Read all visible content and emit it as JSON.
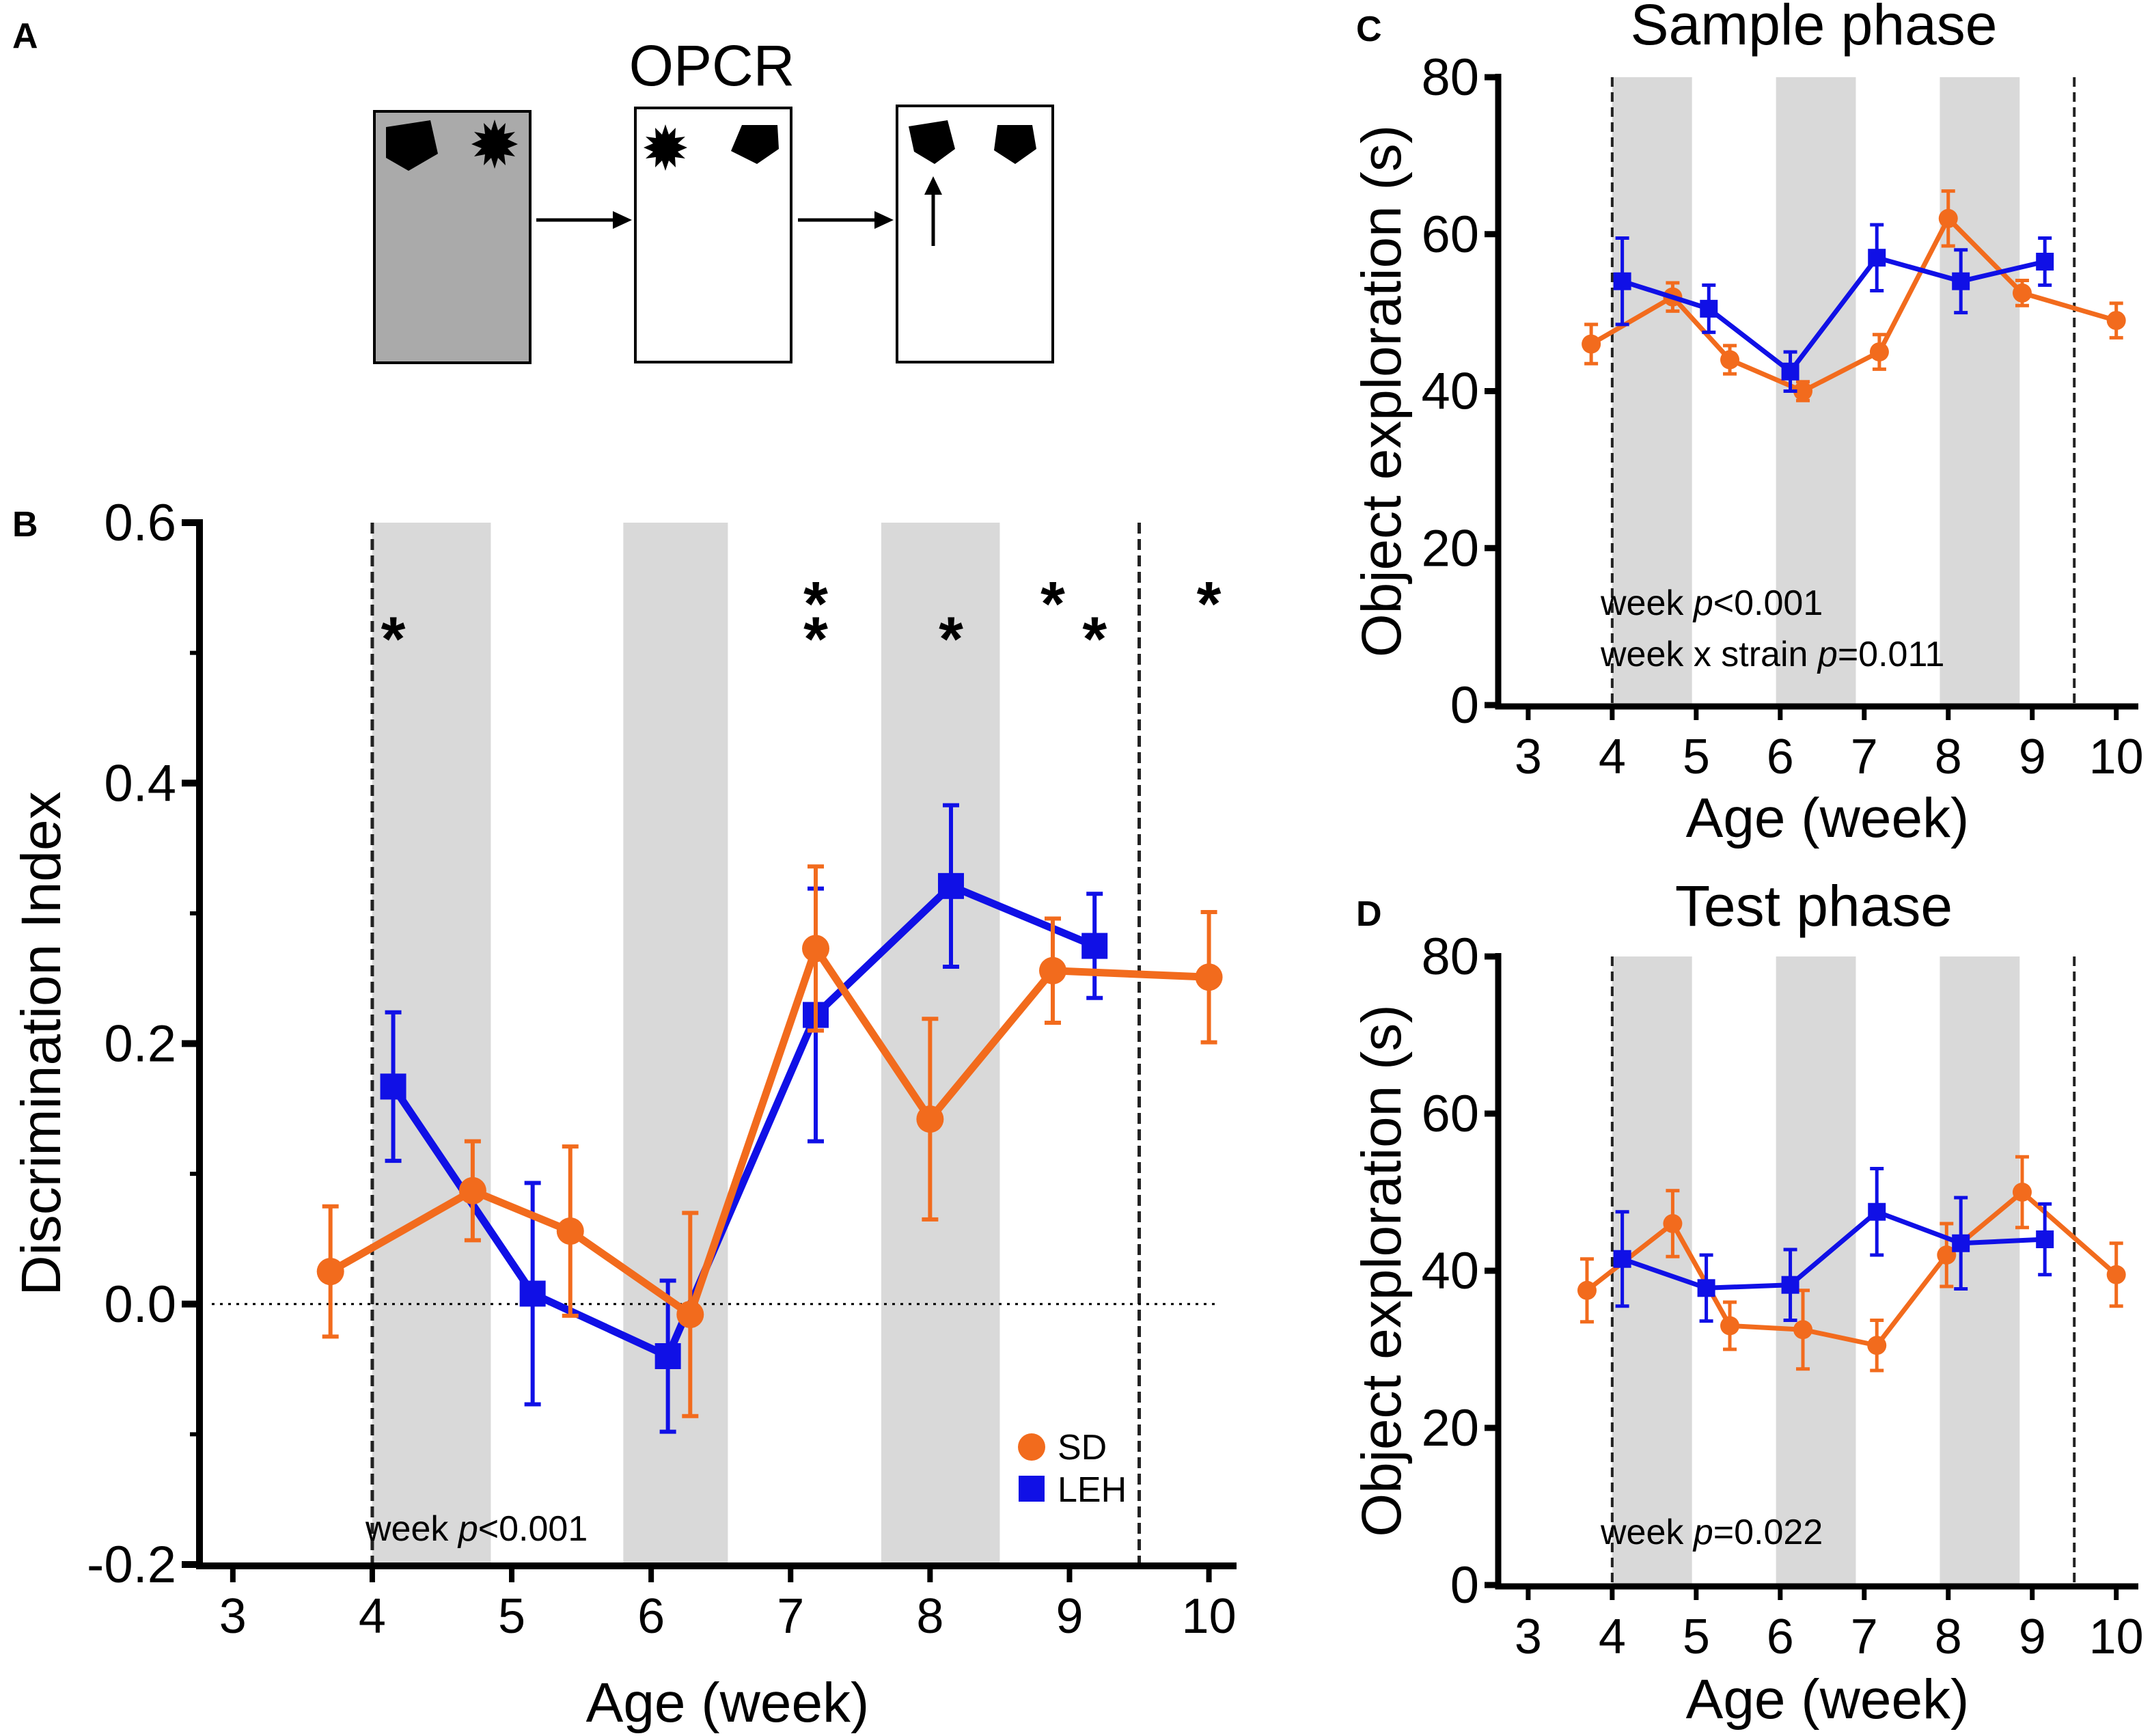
{
  "panel_labels": [
    "A",
    "B",
    "C",
    "D"
  ],
  "schematic": {
    "title": "OPCR",
    "boxes": [
      {
        "shading": "gray",
        "objects": [
          "pentagon",
          "star-burst"
        ],
        "arrow_under": "none"
      },
      {
        "shading": "white",
        "objects": [
          "star-burst",
          "pentagon"
        ],
        "arrow_under": "none"
      },
      {
        "shading": "white",
        "objects": [
          "pentagon",
          "pentagon"
        ],
        "arrow_under": "left"
      }
    ]
  },
  "colors": {
    "sd": "#F26B1D",
    "leh": "#1010E6",
    "band": "#D9D9D9"
  },
  "chart_data": [
    {
      "panel": "B",
      "type": "line",
      "title": "",
      "xlabel": "Age (week)",
      "ylabel": "Discrimination Index",
      "xlim": [
        2.8,
        10.1
      ],
      "ylim": [
        -0.2,
        0.6
      ],
      "xticks": [
        3,
        4,
        5,
        6,
        7,
        8,
        9,
        10
      ],
      "yticks": [
        -0.2,
        0.0,
        0.2,
        0.4,
        0.6
      ],
      "ytick_labels": [
        "-0.2",
        "0.0",
        "0.2",
        "0.4",
        "0.6"
      ],
      "shaded_bands": [
        [
          4.0,
          4.85
        ],
        [
          5.8,
          6.55
        ],
        [
          7.65,
          8.5
        ]
      ],
      "dashed_vlines": [
        4.0,
        9.5
      ],
      "zero_line": 0.0,
      "series": [
        {
          "name": "SD",
          "marker": "circle",
          "color": "#F26B1D",
          "x": [
            3.7,
            4.72,
            5.42,
            6.28,
            7.18,
            8.0,
            8.88,
            10.0
          ],
          "y": [
            0.025,
            0.087,
            0.056,
            -0.008,
            0.273,
            0.142,
            0.256,
            0.251
          ],
          "err": [
            0.05,
            0.038,
            0.065,
            0.078,
            0.063,
            0.077,
            0.04,
            0.05
          ]
        },
        {
          "name": "LEH",
          "marker": "square",
          "color": "#1010E6",
          "x": [
            4.15,
            5.15,
            6.12,
            7.18,
            8.15,
            9.18
          ],
          "y": [
            0.167,
            0.008,
            -0.04,
            0.222,
            0.321,
            0.275
          ],
          "err": [
            0.057,
            0.085,
            0.058,
            0.097,
            0.062,
            0.04
          ]
        }
      ],
      "significance_markers": [
        {
          "x": 4.15,
          "y": 0.515,
          "label": "*",
          "series": "LEH"
        },
        {
          "x": 7.18,
          "y": 0.542,
          "label": "*",
          "series": "SD"
        },
        {
          "x": 7.18,
          "y": 0.515,
          "label": "*",
          "series": "LEH"
        },
        {
          "x": 8.15,
          "y": 0.515,
          "label": "*",
          "series": "LEH"
        },
        {
          "x": 8.88,
          "y": 0.542,
          "label": "*",
          "series": "SD"
        },
        {
          "x": 9.18,
          "y": 0.515,
          "label": "*",
          "series": "LEH"
        },
        {
          "x": 10.0,
          "y": 0.542,
          "label": "*",
          "series": "SD"
        }
      ],
      "annotations": [
        {
          "pre": "week ",
          "it": "p",
          "post": "<0.001"
        }
      ],
      "legend": {
        "position": "bottom-right",
        "entries": [
          "SD",
          "LEH"
        ]
      }
    },
    {
      "panel": "C",
      "type": "line",
      "title": "Sample phase",
      "xlabel": "Age (week)",
      "ylabel": "Object exploration (s)",
      "xlim": [
        2.7,
        10.1
      ],
      "ylim": [
        0,
        80
      ],
      "xticks": [
        3,
        4,
        5,
        6,
        7,
        8,
        9,
        10
      ],
      "yticks": [
        0,
        20,
        40,
        60,
        80
      ],
      "ytick_labels": [
        "0",
        "20",
        "40",
        "60",
        "80"
      ],
      "shaded_bands": [
        [
          4.0,
          4.95
        ],
        [
          5.95,
          6.9
        ],
        [
          7.9,
          8.85
        ]
      ],
      "dashed_vlines": [
        4.0,
        9.5
      ],
      "series": [
        {
          "name": "SD",
          "marker": "circle",
          "color": "#F26B1D",
          "x": [
            3.75,
            4.72,
            5.4,
            6.27,
            7.18,
            8.0,
            8.88,
            10.0
          ],
          "y": [
            46,
            52,
            44,
            40,
            45,
            62,
            52.5,
            49
          ],
          "err": [
            2.5,
            1.8,
            1.8,
            1.2,
            2.2,
            3.5,
            1.6,
            2.2
          ]
        },
        {
          "name": "LEH",
          "marker": "square",
          "color": "#1010E6",
          "x": [
            4.12,
            5.15,
            6.12,
            7.15,
            8.15,
            9.15
          ],
          "y": [
            54,
            50.5,
            42.5,
            57,
            54,
            56.5
          ],
          "err": [
            5.5,
            3,
            2.5,
            4.2,
            4,
            3
          ]
        }
      ],
      "annotations": [
        {
          "pre": "week ",
          "it": "p",
          "post": "<0.001"
        },
        {
          "pre": "week x strain ",
          "it": "p",
          "post": "=0.011"
        }
      ]
    },
    {
      "panel": "D",
      "type": "line",
      "title": "Test phase",
      "xlabel": "Age (week)",
      "ylabel": "Object exploration (s)",
      "xlim": [
        2.7,
        10.1
      ],
      "ylim": [
        0,
        80
      ],
      "xticks": [
        3,
        4,
        5,
        6,
        7,
        8,
        9,
        10
      ],
      "yticks": [
        0,
        20,
        40,
        60,
        80
      ],
      "ytick_labels": [
        "0",
        "20",
        "40",
        "60",
        "80"
      ],
      "shaded_bands": [
        [
          4.0,
          4.95
        ],
        [
          5.95,
          6.9
        ],
        [
          7.9,
          8.85
        ]
      ],
      "dashed_vlines": [
        4.0,
        9.5
      ],
      "series": [
        {
          "name": "SD",
          "marker": "circle",
          "color": "#F26B1D",
          "x": [
            3.7,
            4.72,
            5.4,
            6.27,
            7.15,
            7.98,
            8.88,
            10.0
          ],
          "y": [
            37.5,
            46,
            33,
            32.5,
            30.5,
            42,
            50,
            39.5
          ],
          "err": [
            4,
            4.2,
            3,
            5,
            3.2,
            4,
            4.5,
            4
          ]
        },
        {
          "name": "LEH",
          "marker": "square",
          "color": "#1010E6",
          "x": [
            4.12,
            5.12,
            6.12,
            7.15,
            8.15,
            9.15
          ],
          "y": [
            41.5,
            37.8,
            38.2,
            47.5,
            43.5,
            44
          ],
          "err": [
            6,
            4.2,
            4.5,
            5.5,
            5.8,
            4.5
          ]
        }
      ],
      "annotations": [
        {
          "pre": "week ",
          "it": "p",
          "post": "=0.022"
        }
      ]
    }
  ]
}
